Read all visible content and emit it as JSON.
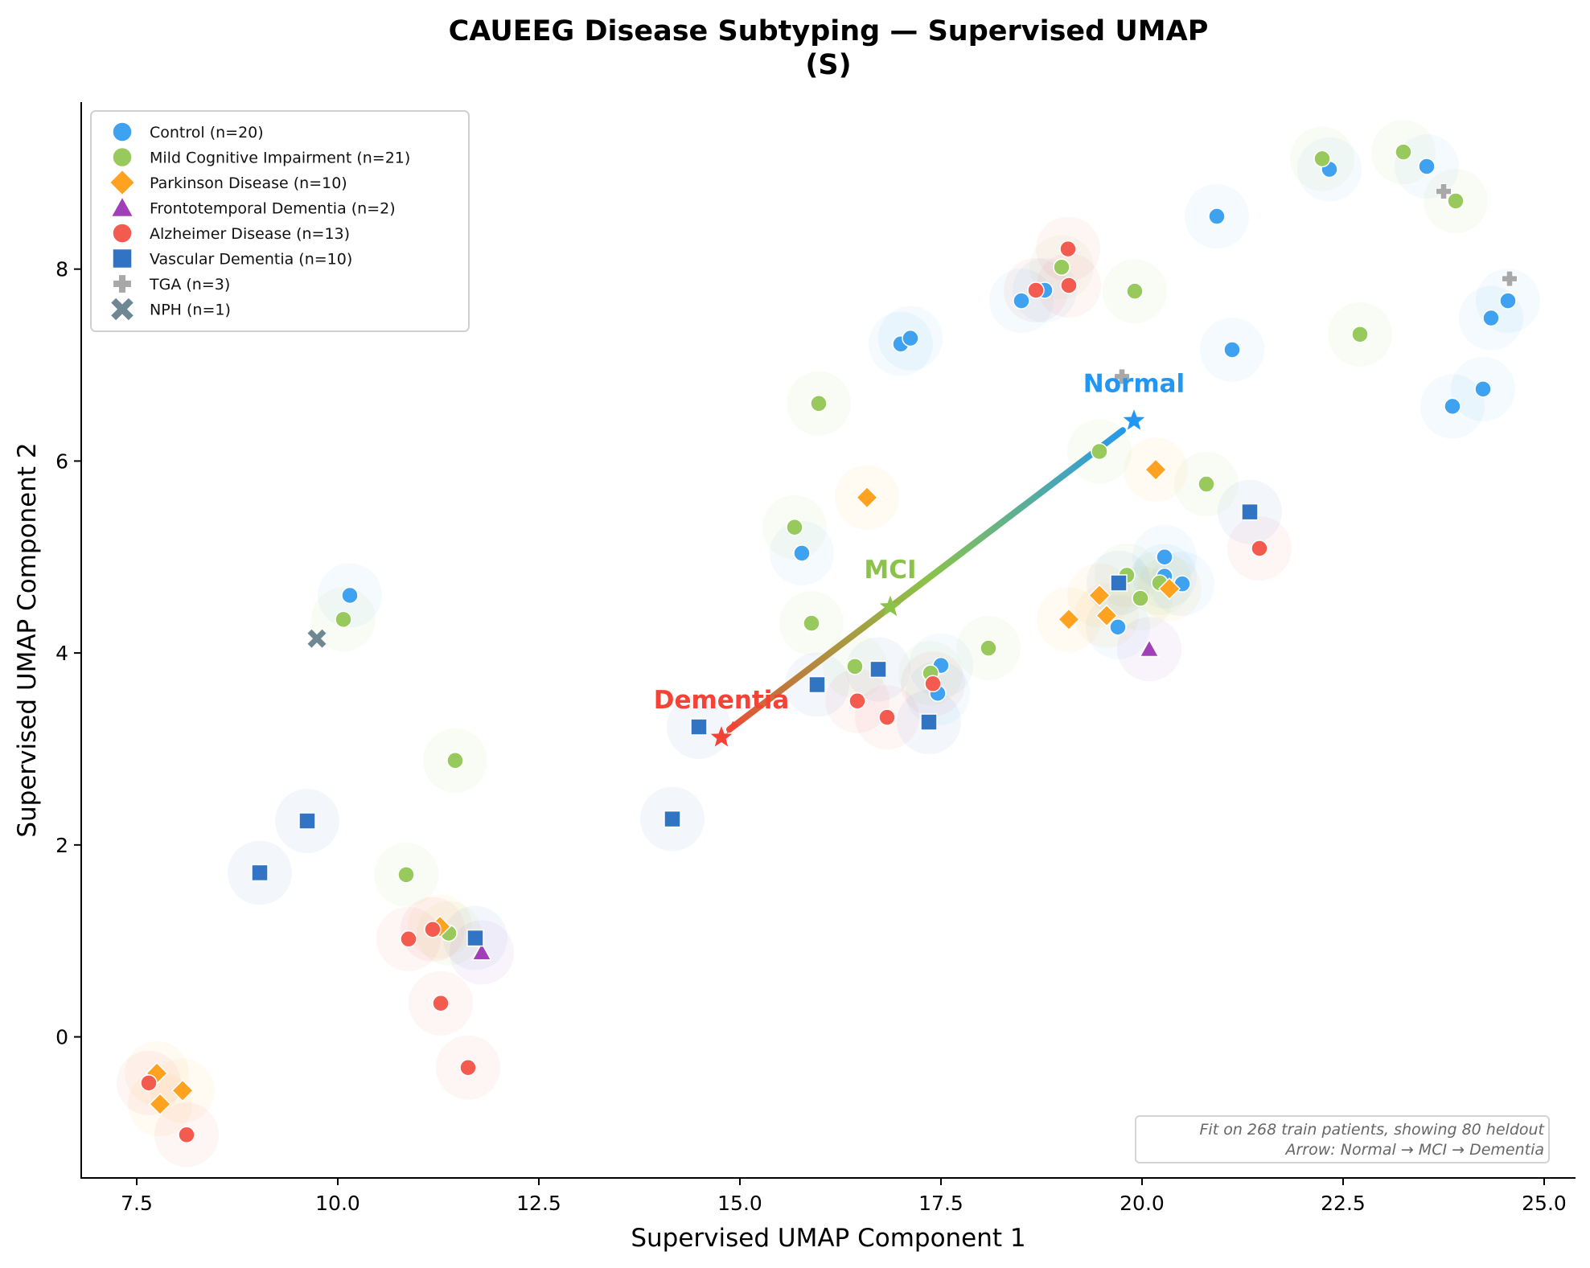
{
  "chart_data": {
    "type": "scatter",
    "title": "CAUEEG Disease Subtyping — Supervised UMAP",
    "subtitle": "(S)",
    "xlabel": "Supervised UMAP Component 1",
    "ylabel": "Supervised UMAP Component 2",
    "xlim": [
      6.81,
      25.38
    ],
    "ylim": [
      -1.47,
      9.74
    ],
    "xticks": [
      7.5,
      10.0,
      12.5,
      15.0,
      17.5,
      20.0,
      22.5,
      25.0
    ],
    "xtick_labels": [
      "7.5",
      "10.0",
      "12.5",
      "15.0",
      "17.5",
      "20.0",
      "22.5",
      "25.0"
    ],
    "yticks": [
      0,
      2,
      4,
      6,
      8
    ],
    "ytick_labels": [
      "0",
      "2",
      "4",
      "6",
      "8"
    ],
    "grid": false,
    "legend_position": "top-left",
    "series": [
      {
        "name": "Control (n=20)",
        "marker": "circle",
        "color": "#3fa2f1",
        "points": [
          [
            10.15,
            4.6
          ],
          [
            17.0,
            7.22
          ],
          [
            17.12,
            7.28
          ],
          [
            18.5,
            7.67
          ],
          [
            18.79,
            7.78
          ],
          [
            20.93,
            8.55
          ],
          [
            21.12,
            7.16
          ],
          [
            22.33,
            9.04
          ],
          [
            23.54,
            9.07
          ],
          [
            24.34,
            7.49
          ],
          [
            24.55,
            7.67
          ],
          [
            24.24,
            6.75
          ],
          [
            23.86,
            6.57
          ],
          [
            15.77,
            5.04
          ],
          [
            17.5,
            3.87
          ],
          [
            17.46,
            3.58
          ],
          [
            20.28,
            5.0
          ],
          [
            20.28,
            4.8
          ],
          [
            20.5,
            4.72
          ],
          [
            19.7,
            4.27
          ]
        ]
      },
      {
        "name": "Mild Cognitive Impairment (n=21)",
        "marker": "circle",
        "color": "#97c95c",
        "points": [
          [
            10.07,
            4.35
          ],
          [
            11.46,
            2.88
          ],
          [
            10.85,
            1.69
          ],
          [
            11.38,
            1.08
          ],
          [
            15.98,
            6.6
          ],
          [
            15.68,
            5.31
          ],
          [
            15.89,
            4.31
          ],
          [
            16.43,
            3.86
          ],
          [
            17.37,
            3.79
          ],
          [
            18.09,
            4.05
          ],
          [
            19.0,
            8.02
          ],
          [
            19.91,
            7.77
          ],
          [
            19.47,
            6.1
          ],
          [
            20.8,
            5.76
          ],
          [
            19.81,
            4.81
          ],
          [
            19.98,
            4.57
          ],
          [
            20.22,
            4.73
          ],
          [
            22.24,
            9.15
          ],
          [
            23.25,
            9.22
          ],
          [
            23.9,
            8.71
          ],
          [
            22.71,
            7.32
          ]
        ]
      },
      {
        "name": "Parkinson Disease (n=10)",
        "marker": "diamond",
        "color": "#ffa21f",
        "points": [
          [
            7.75,
            -0.38
          ],
          [
            7.79,
            -0.7
          ],
          [
            8.07,
            -0.56
          ],
          [
            11.27,
            1.15
          ],
          [
            16.58,
            5.62
          ],
          [
            20.17,
            5.91
          ],
          [
            19.09,
            4.35
          ],
          [
            19.47,
            4.6
          ],
          [
            19.56,
            4.39
          ],
          [
            20.34,
            4.67
          ]
        ]
      },
      {
        "name": "Frontotemporal Dementia (n=2)",
        "marker": "triangle",
        "color": "#a040b8",
        "points": [
          [
            11.79,
            0.88
          ],
          [
            20.09,
            4.04
          ]
        ]
      },
      {
        "name": "Alzheimer Disease (n=13)",
        "marker": "circle",
        "color": "#f45b4f",
        "points": [
          [
            7.65,
            -0.48
          ],
          [
            8.12,
            -1.02
          ],
          [
            10.88,
            1.02
          ],
          [
            11.18,
            1.12
          ],
          [
            11.28,
            0.35
          ],
          [
            11.62,
            -0.32
          ],
          [
            16.46,
            3.5
          ],
          [
            16.83,
            3.33
          ],
          [
            17.4,
            3.68
          ],
          [
            18.68,
            7.78
          ],
          [
            19.08,
            8.21
          ],
          [
            19.09,
            7.83
          ],
          [
            21.46,
            5.09
          ]
        ]
      },
      {
        "name": "Vascular Dementia (n=10)",
        "marker": "square",
        "color": "#3274c4",
        "points": [
          [
            9.03,
            1.71
          ],
          [
            9.62,
            2.25
          ],
          [
            11.71,
            1.03
          ],
          [
            14.16,
            2.27
          ],
          [
            14.49,
            3.23
          ],
          [
            15.96,
            3.67
          ],
          [
            16.72,
            3.83
          ],
          [
            17.35,
            3.28
          ],
          [
            19.71,
            4.73
          ],
          [
            21.34,
            5.47
          ]
        ]
      },
      {
        "name": "TGA (n=3)",
        "marker": "plus",
        "color": "#a8a8a8",
        "points": [
          [
            23.75,
            8.81
          ],
          [
            24.57,
            7.9
          ],
          [
            19.75,
            6.88
          ]
        ]
      },
      {
        "name": "NPH (n=1)",
        "marker": "x",
        "color": "#6f8793",
        "points": [
          [
            9.74,
            4.15
          ]
        ]
      }
    ],
    "centroids": [
      {
        "name": "Normal",
        "x": 19.9,
        "y": 6.42,
        "color": "#2196f3"
      },
      {
        "name": "MCI",
        "x": 16.87,
        "y": 4.48,
        "color": "#8bc34a"
      },
      {
        "name": "Dementia",
        "x": 14.77,
        "y": 3.12,
        "color": "#f44336"
      }
    ],
    "annotation": {
      "line1": "Fit on 268 train patients, showing 80 heldout",
      "line2": "Arrow: Normal → MCI → Dementia"
    }
  }
}
